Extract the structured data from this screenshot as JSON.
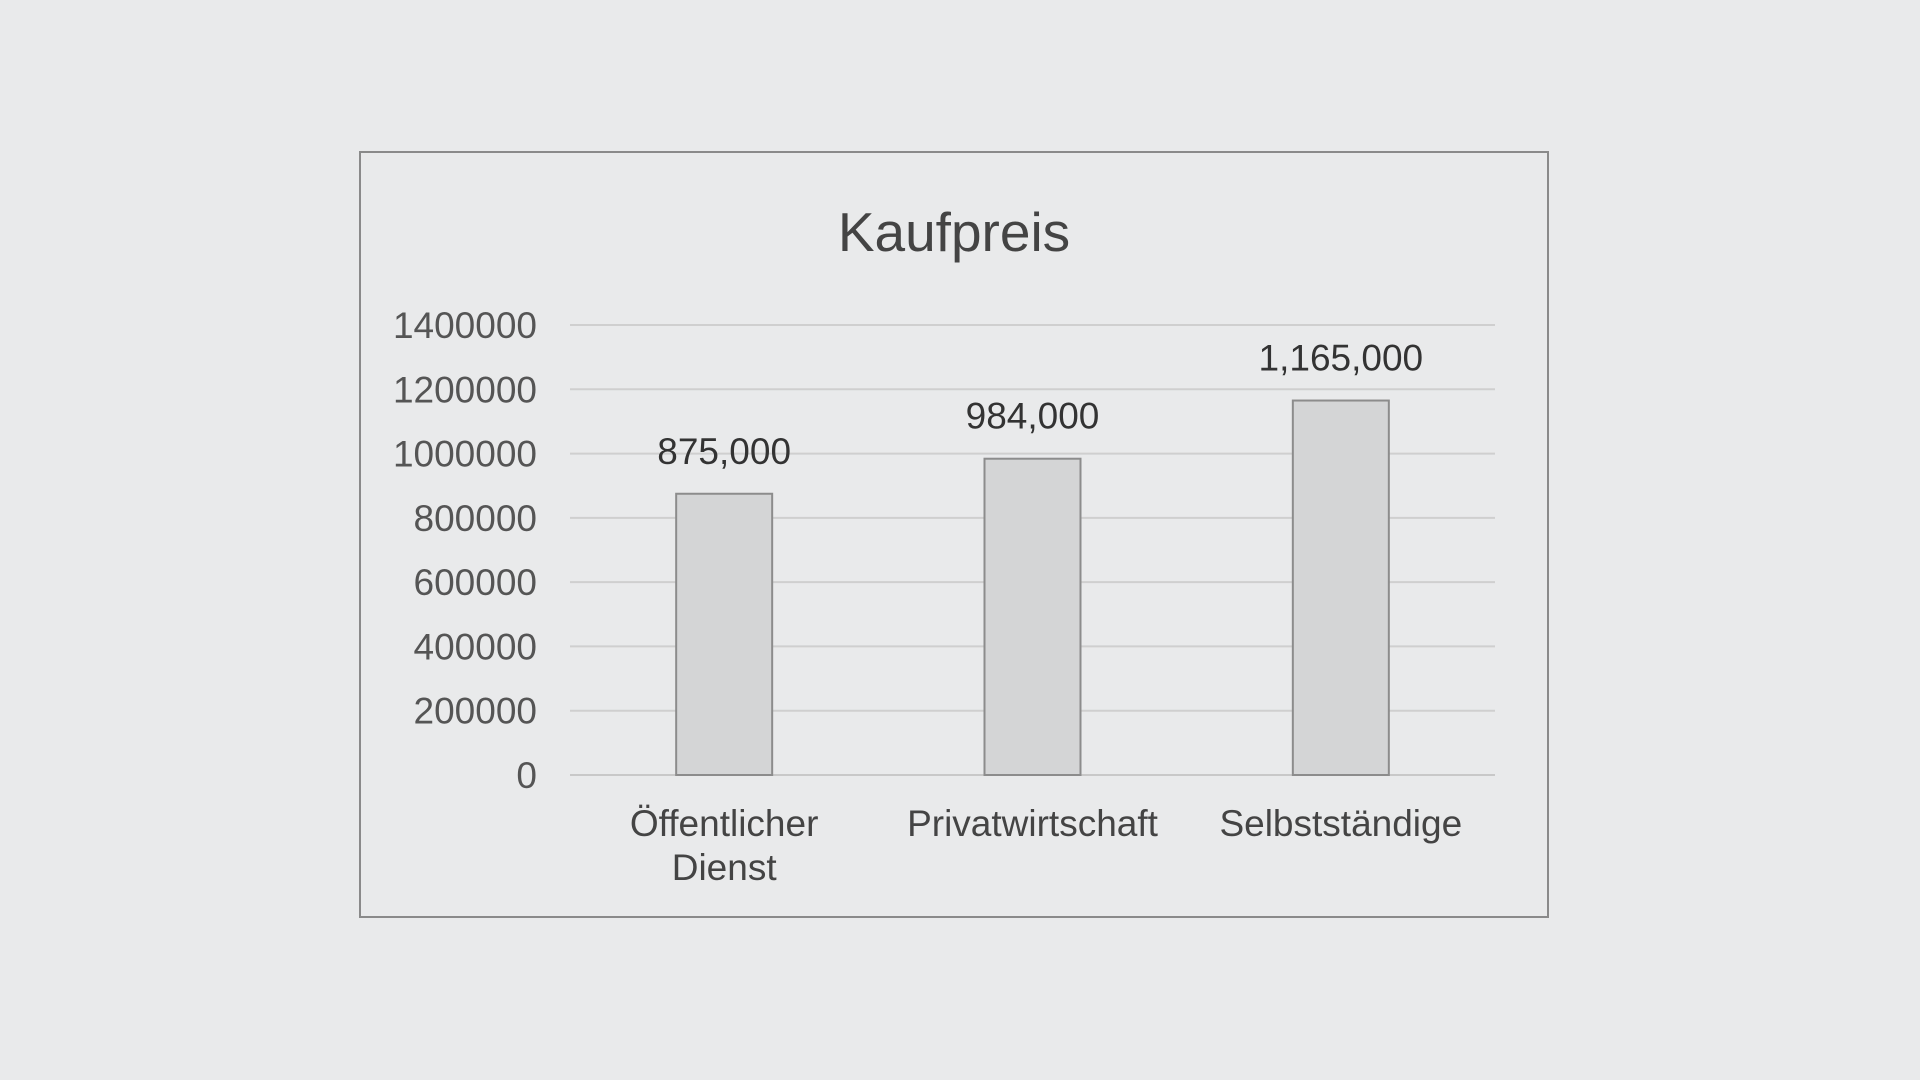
{
  "chart_data": {
    "type": "bar",
    "title": "Kaufpreis",
    "categories": [
      [
        "Öffentlicher",
        "Dienst"
      ],
      [
        "Privatwirtschaft"
      ],
      [
        "Selbstständige"
      ]
    ],
    "values": [
      875000,
      984000,
      1165000
    ],
    "data_labels": [
      "875,000",
      "984,000",
      "1,165,000"
    ],
    "yticks": [
      "0",
      "200000",
      "400000",
      "600000",
      "800000",
      "1000000",
      "1200000",
      "1400000"
    ],
    "ylim": [
      0,
      1400000
    ],
    "ytick_step": 200000,
    "grid": true,
    "legend": "none",
    "colors": {
      "bar_fill": "#d4d5d6",
      "bar_stroke": "#8c8c8c",
      "grid": "#cfcfcf",
      "baseline": "#c8c8c8"
    }
  }
}
